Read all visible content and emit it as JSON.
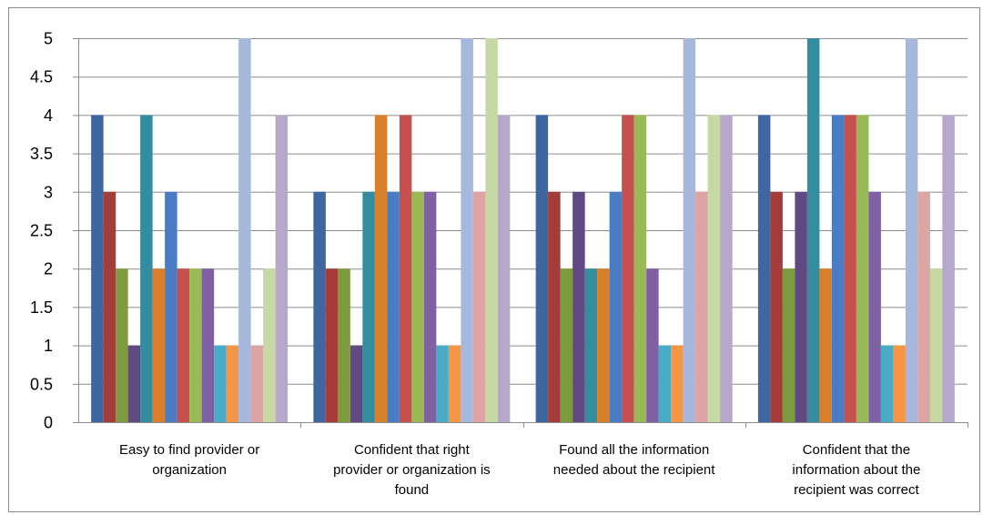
{
  "chart_data": {
    "type": "bar",
    "title": "",
    "xlabel": "",
    "ylabel": "",
    "ylim": [
      0,
      5
    ],
    "y_ticks": [
      "0",
      "0.5",
      "1",
      "1.5",
      "2",
      "2.5",
      "3",
      "3.5",
      "4",
      "4.5",
      "5"
    ],
    "grid": true,
    "legend": "none",
    "categories": [
      [
        "Easy to find provider or",
        "organization"
      ],
      [
        "Confident that right",
        "provider or organization is",
        "found"
      ],
      [
        "Found all the information",
        "needed about the recipient"
      ],
      [
        "Confident that the",
        "information about the",
        "recipient was correct"
      ]
    ],
    "series": [
      {
        "color": "#3e66a1",
        "values": [
          4,
          3,
          4,
          4
        ]
      },
      {
        "color": "#a33c3a",
        "values": [
          3,
          2,
          3,
          3
        ]
      },
      {
        "color": "#7e9a3e",
        "values": [
          2,
          2,
          2,
          2
        ]
      },
      {
        "color": "#614a84",
        "values": [
          1,
          1,
          3,
          3
        ]
      },
      {
        "color": "#338c9f",
        "values": [
          4,
          3,
          2,
          5
        ]
      },
      {
        "color": "#d97f2b",
        "values": [
          2,
          4,
          2,
          2
        ]
      },
      {
        "color": "#4a7cc4",
        "values": [
          3,
          3,
          3,
          4
        ]
      },
      {
        "color": "#c5504d",
        "values": [
          2,
          4,
          4,
          4
        ]
      },
      {
        "color": "#98b954",
        "values": [
          2,
          3,
          4,
          4
        ]
      },
      {
        "color": "#7f60a3",
        "values": [
          2,
          3,
          2,
          3
        ]
      },
      {
        "color": "#4aabc6",
        "values": [
          1,
          1,
          1,
          1
        ]
      },
      {
        "color": "#f69545",
        "values": [
          1,
          1,
          1,
          1
        ]
      },
      {
        "color": "#a6b9dc",
        "values": [
          5,
          5,
          5,
          5
        ]
      },
      {
        "color": "#dca5a4",
        "values": [
          1,
          3,
          3,
          3
        ]
      },
      {
        "color": "#c6d8a4",
        "values": [
          2,
          5,
          4,
          2
        ]
      },
      {
        "color": "#b6a8ca",
        "values": [
          4,
          4,
          4,
          4
        ]
      }
    ]
  }
}
